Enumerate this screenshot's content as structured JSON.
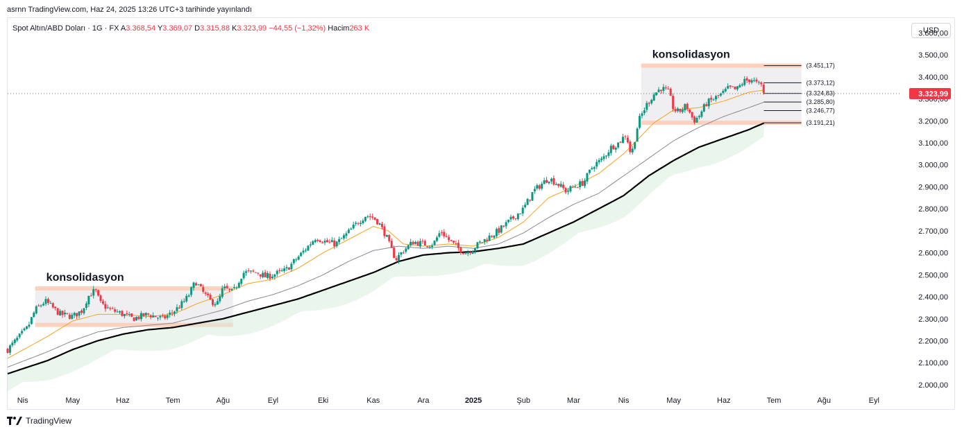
{
  "header": {
    "publish_line": "asrnn TradingView.com, Haz 24, 2025 13:26 UTC+3 tarihinde yayınlandı"
  },
  "legend": {
    "symbol": "Spot Altın/ABD Doları · 1G · FX",
    "open_label": "A",
    "open": "3.368,54",
    "high_label": "Y",
    "high": "3.369,07",
    "low_label": "D",
    "low": "3.315,88",
    "close_label": "K",
    "close": "3.323,99",
    "change": "−44,55 (−1,32%)",
    "volume_label": "Hacim",
    "volume": "263 K"
  },
  "currency_button": "USD",
  "footer": {
    "brand": "TradingView",
    "logo_icon": "tradingview-logo-icon"
  },
  "colors": {
    "up": "#089981",
    "down": "#f23645",
    "ema_fast": "#f7a21b",
    "ema_mid": "#868993",
    "ema_slow": "#000000",
    "zone_border": "#ffcdb8",
    "zone_fill": "#e9e9ec",
    "price_tag": "#f23645"
  },
  "chart_data": {
    "type": "candlestick",
    "y_ticks": [
      "3.600,00",
      "3.500,00",
      "3.400,00",
      "3.300,00",
      "3.200,00",
      "3.100,00",
      "3.000,00",
      "2.900,00",
      "2.800,00",
      "2.700,00",
      "2.600,00",
      "2.500,00",
      "2.400,00",
      "2.300,00",
      "2.200,00",
      "2.100,00",
      "2.000,00"
    ],
    "y_values": [
      3600,
      3500,
      3400,
      3300,
      3200,
      3100,
      3000,
      2900,
      2800,
      2700,
      2600,
      2500,
      2400,
      2300,
      2200,
      2100,
      2000
    ],
    "ylim": [
      1965,
      3655
    ],
    "x_ticks": [
      "Nis",
      "May",
      "Haz",
      "Tem",
      "Ağu",
      "Eyl",
      "Eki",
      "Kas",
      "Ara",
      "2025",
      "Şub",
      "Mar",
      "Nis",
      "May",
      "Haz",
      "Tem",
      "Ağu",
      "Eyl"
    ],
    "x_tick_months": [
      0,
      1,
      2,
      3,
      4,
      5,
      6,
      7,
      8,
      9,
      10,
      11,
      12,
      13,
      14,
      15,
      16,
      17
    ],
    "x_range_months": [
      -0.3,
      17.55
    ],
    "last_price": 3323.99,
    "last_price_label": "3.323,99",
    "close_path": [
      [
        -0.3,
        2160
      ],
      [
        0.1,
        2260
      ],
      [
        0.25,
        2340
      ],
      [
        0.45,
        2380
      ],
      [
        0.55,
        2360
      ],
      [
        0.75,
        2320
      ],
      [
        1.0,
        2310
      ],
      [
        1.2,
        2340
      ],
      [
        1.3,
        2400
      ],
      [
        1.45,
        2430
      ],
      [
        1.55,
        2370
      ],
      [
        1.75,
        2340
      ],
      [
        1.9,
        2330
      ],
      [
        2.2,
        2300
      ],
      [
        2.5,
        2320
      ],
      [
        2.8,
        2300
      ],
      [
        3.0,
        2330
      ],
      [
        3.15,
        2360
      ],
      [
        3.3,
        2400
      ],
      [
        3.45,
        2470
      ],
      [
        3.6,
        2420
      ],
      [
        3.75,
        2380
      ],
      [
        3.9,
        2370
      ],
      [
        4.0,
        2440
      ],
      [
        4.2,
        2420
      ],
      [
        4.4,
        2510
      ],
      [
        4.7,
        2510
      ],
      [
        4.85,
        2490
      ],
      [
        5.0,
        2500
      ],
      [
        5.25,
        2520
      ],
      [
        5.5,
        2580
      ],
      [
        5.7,
        2630
      ],
      [
        5.85,
        2670
      ],
      [
        6.05,
        2650
      ],
      [
        6.25,
        2640
      ],
      [
        6.45,
        2680
      ],
      [
        6.7,
        2740
      ],
      [
        6.85,
        2770
      ],
      [
        7.0,
        2760
      ],
      [
        7.1,
        2740
      ],
      [
        7.25,
        2680
      ],
      [
        7.35,
        2620
      ],
      [
        7.45,
        2570
      ],
      [
        7.6,
        2610
      ],
      [
        7.8,
        2650
      ],
      [
        8.0,
        2640
      ],
      [
        8.2,
        2640
      ],
      [
        8.35,
        2700
      ],
      [
        8.5,
        2660
      ],
      [
        8.7,
        2620
      ],
      [
        8.85,
        2600
      ],
      [
        9.0,
        2620
      ],
      [
        9.1,
        2640
      ],
      [
        9.3,
        2670
      ],
      [
        9.5,
        2700
      ],
      [
        9.8,
        2760
      ],
      [
        10.0,
        2800
      ],
      [
        10.2,
        2880
      ],
      [
        10.5,
        2940
      ],
      [
        10.7,
        2910
      ],
      [
        10.85,
        2880
      ],
      [
        11.0,
        2900
      ],
      [
        11.2,
        2920
      ],
      [
        11.4,
        3000
      ],
      [
        11.55,
        3020
      ],
      [
        11.75,
        3080
      ],
      [
        11.9,
        3100
      ],
      [
        12.05,
        3140
      ],
      [
        12.15,
        3040
      ],
      [
        12.3,
        3200
      ],
      [
        12.45,
        3270
      ],
      [
        12.6,
        3320
      ],
      [
        12.75,
        3350
      ],
      [
        12.9,
        3330
      ],
      [
        13.0,
        3250
      ],
      [
        13.1,
        3240
      ],
      [
        13.25,
        3270
      ],
      [
        13.4,
        3200
      ],
      [
        13.5,
        3220
      ],
      [
        13.65,
        3280
      ],
      [
        13.8,
        3300
      ],
      [
        13.95,
        3320
      ],
      [
        14.1,
        3350
      ],
      [
        14.25,
        3340
      ],
      [
        14.4,
        3380
      ],
      [
        14.55,
        3390
      ],
      [
        14.65,
        3370
      ],
      [
        14.75,
        3360
      ],
      [
        14.8,
        3323.99
      ]
    ],
    "ema_fast_path": [
      [
        -0.3,
        2120
      ],
      [
        0.5,
        2220
      ],
      [
        1.0,
        2290
      ],
      [
        1.5,
        2320
      ],
      [
        2.0,
        2320
      ],
      [
        2.5,
        2310
      ],
      [
        3.0,
        2320
      ],
      [
        3.5,
        2370
      ],
      [
        4.0,
        2410
      ],
      [
        4.5,
        2460
      ],
      [
        5.0,
        2480
      ],
      [
        5.5,
        2530
      ],
      [
        6.0,
        2600
      ],
      [
        6.5,
        2660
      ],
      [
        7.0,
        2720
      ],
      [
        7.3,
        2700
      ],
      [
        7.6,
        2640
      ],
      [
        8.0,
        2630
      ],
      [
        8.5,
        2640
      ],
      [
        9.0,
        2630
      ],
      [
        9.5,
        2670
      ],
      [
        10.0,
        2740
      ],
      [
        10.5,
        2850
      ],
      [
        11.0,
        2900
      ],
      [
        11.5,
        2960
      ],
      [
        12.0,
        3050
      ],
      [
        12.3,
        3120
      ],
      [
        12.6,
        3190
      ],
      [
        13.0,
        3250
      ],
      [
        13.5,
        3260
      ],
      [
        14.0,
        3290
      ],
      [
        14.5,
        3330
      ],
      [
        14.8,
        3340
      ]
    ],
    "ema_mid_path": [
      [
        -0.3,
        2080
      ],
      [
        0.5,
        2150
      ],
      [
        1.0,
        2200
      ],
      [
        1.5,
        2240
      ],
      [
        2.0,
        2260
      ],
      [
        2.5,
        2270
      ],
      [
        3.0,
        2280
      ],
      [
        3.5,
        2310
      ],
      [
        4.0,
        2340
      ],
      [
        4.5,
        2380
      ],
      [
        5.0,
        2410
      ],
      [
        5.5,
        2450
      ],
      [
        6.0,
        2500
      ],
      [
        6.5,
        2560
      ],
      [
        7.0,
        2610
      ],
      [
        7.5,
        2630
      ],
      [
        8.0,
        2620
      ],
      [
        8.5,
        2630
      ],
      [
        9.0,
        2620
      ],
      [
        9.5,
        2640
      ],
      [
        10.0,
        2690
      ],
      [
        10.5,
        2760
      ],
      [
        11.0,
        2820
      ],
      [
        11.5,
        2870
      ],
      [
        12.0,
        2950
      ],
      [
        12.5,
        3030
      ],
      [
        13.0,
        3110
      ],
      [
        13.5,
        3170
      ],
      [
        14.0,
        3220
      ],
      [
        14.5,
        3260
      ],
      [
        14.8,
        3285
      ]
    ],
    "ema_slow_path": [
      [
        -0.3,
        2050
      ],
      [
        0.5,
        2110
      ],
      [
        1.0,
        2160
      ],
      [
        1.5,
        2200
      ],
      [
        2.0,
        2230
      ],
      [
        2.5,
        2250
      ],
      [
        3.0,
        2260
      ],
      [
        3.5,
        2280
      ],
      [
        4.0,
        2300
      ],
      [
        4.5,
        2330
      ],
      [
        5.0,
        2360
      ],
      [
        5.5,
        2390
      ],
      [
        6.0,
        2430
      ],
      [
        6.5,
        2470
      ],
      [
        7.0,
        2510
      ],
      [
        7.5,
        2560
      ],
      [
        8.0,
        2590
      ],
      [
        8.5,
        2600
      ],
      [
        9.0,
        2605
      ],
      [
        9.5,
        2620
      ],
      [
        10.0,
        2640
      ],
      [
        10.5,
        2690
      ],
      [
        11.0,
        2740
      ],
      [
        11.5,
        2800
      ],
      [
        12.0,
        2860
      ],
      [
        12.5,
        2950
      ],
      [
        13.0,
        3020
      ],
      [
        13.5,
        3080
      ],
      [
        14.0,
        3120
      ],
      [
        14.5,
        3160
      ],
      [
        14.8,
        3190
      ]
    ],
    "zones": [
      {
        "label": "konsolidasyon",
        "x_start": 0.25,
        "x_end": 4.2,
        "y_top": 2438,
        "y_bottom": 2272
      },
      {
        "label": "konsolidasyon",
        "x_start": 12.35,
        "x_end": 15.55,
        "y_top": 3451.17,
        "y_bottom": 3191.21
      }
    ],
    "levels": [
      {
        "label": "(3.451,17)",
        "value": 3451.17
      },
      {
        "label": "(3.373,12)",
        "value": 3373.12
      },
      {
        "label": "(3.324,83)",
        "value": 3324.83
      },
      {
        "label": "(3.285,80)",
        "value": 3285.8
      },
      {
        "label": "(3.246,77)",
        "value": 3246.77
      },
      {
        "label": "(3.191,21)",
        "value": 3191.21
      }
    ],
    "levels_x_range": [
      14.8,
      15.55
    ]
  }
}
